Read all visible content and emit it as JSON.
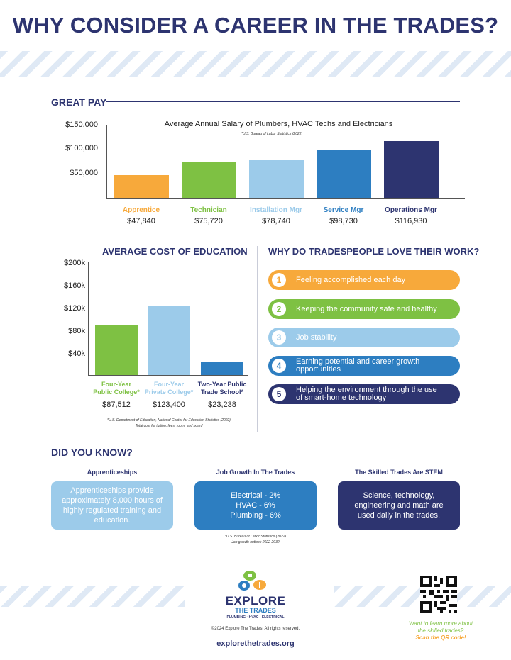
{
  "title": "WHY CONSIDER A CAREER IN THE TRADES?",
  "great_pay": {
    "heading": "GREAT PAY",
    "chart_title": "Average Annual Salary of Plumbers, HVAC Techs and Electricians",
    "source": "*U.S. Bureau of Labor Statistics (2022)",
    "ticks": [
      "$150,000",
      "$100,000",
      "$50,000"
    ],
    "bars": [
      {
        "label": "Apprentice",
        "value_text": "$47,840",
        "value": 47840,
        "color": "#f7a93b"
      },
      {
        "label": "Technician",
        "value_text": "$75,720",
        "value": 75720,
        "color": "#7ec143"
      },
      {
        "label": "Installation Mgr",
        "value_text": "$78,740",
        "value": 78740,
        "color": "#9ccbea"
      },
      {
        "label": "Service Mgr",
        "value_text": "$98,730",
        "value": 98730,
        "color": "#2d7ec1"
      },
      {
        "label": "Operations Mgr",
        "value_text": "$116,930",
        "value": 116930,
        "color": "#2d3470"
      }
    ]
  },
  "education": {
    "heading": "AVERAGE COST OF EDUCATION",
    "ticks": [
      "$200k",
      "$160k",
      "$120k",
      "$80k",
      "$40k"
    ],
    "bars": [
      {
        "label1": "Four-Year",
        "label2": "Public College*",
        "value_text": "$87,512",
        "value": 87512,
        "color": "#7ec143"
      },
      {
        "label1": "Four-Year",
        "label2": "Private College*",
        "value_text": "$123,400",
        "value": 123400,
        "color": "#9ccbea"
      },
      {
        "label1": "Two-Year Public",
        "label2": "Trade School*",
        "value_text": "$23,238",
        "value": 23238,
        "color": "#2d7ec1"
      }
    ],
    "source1": "*U.S. Department of Education, National Center for Education Statistics (2022)",
    "source2": "Total cost for tuition, fees, room, and board"
  },
  "love": {
    "heading": "WHY DO TRADESPEOPLE LOVE THEIR WORK?",
    "items": [
      {
        "num": "1",
        "text": "Feeling accomplished each day",
        "color": "#f7a93b"
      },
      {
        "num": "2",
        "text": "Keeping the community safe and healthy",
        "color": "#7ec143"
      },
      {
        "num": "3",
        "text": "Job stability",
        "color": "#9ccbea"
      },
      {
        "num": "4",
        "text": "Earning potential and career growth opportunities",
        "color": "#2d7ec1"
      },
      {
        "num": "5",
        "text": "Helping the environment through the use of smart-home technology",
        "color": "#2d3470"
      }
    ]
  },
  "did_you_know": {
    "heading": "DID YOU KNOW?",
    "boxes": [
      {
        "head": "Apprenticeships",
        "text": "Apprenticeships provide approximately 8,000 hours of highly regulated training and education.",
        "color": "#9ccbea"
      },
      {
        "head": "Job Growth In The Trades",
        "text": "Electrical - 2%\nHVAC - 6%\nPlumbing - 6%",
        "color": "#2d7ec1"
      },
      {
        "head": "The Skilled Trades Are STEM",
        "text": "Science, technology, engineering and math are used daily in the trades.",
        "color": "#2d3470"
      }
    ],
    "source1": "*U.S. Bureau of Labor Statistics (2022)",
    "source2": "Job growth outlook 2022-2032"
  },
  "footer": {
    "logo1": "EXPLORE",
    "logo2": "THE TRADES",
    "logo_sub": "PLUMBING · HVAC · ELECTRICAL",
    "copyright": "©2024 Explore The Trades. All rights reserved.",
    "url": "explorethetrades.org",
    "cta1": "Want to learn more about",
    "cta2": "the skilled trades?",
    "cta3": "Scan the QR code!"
  }
}
